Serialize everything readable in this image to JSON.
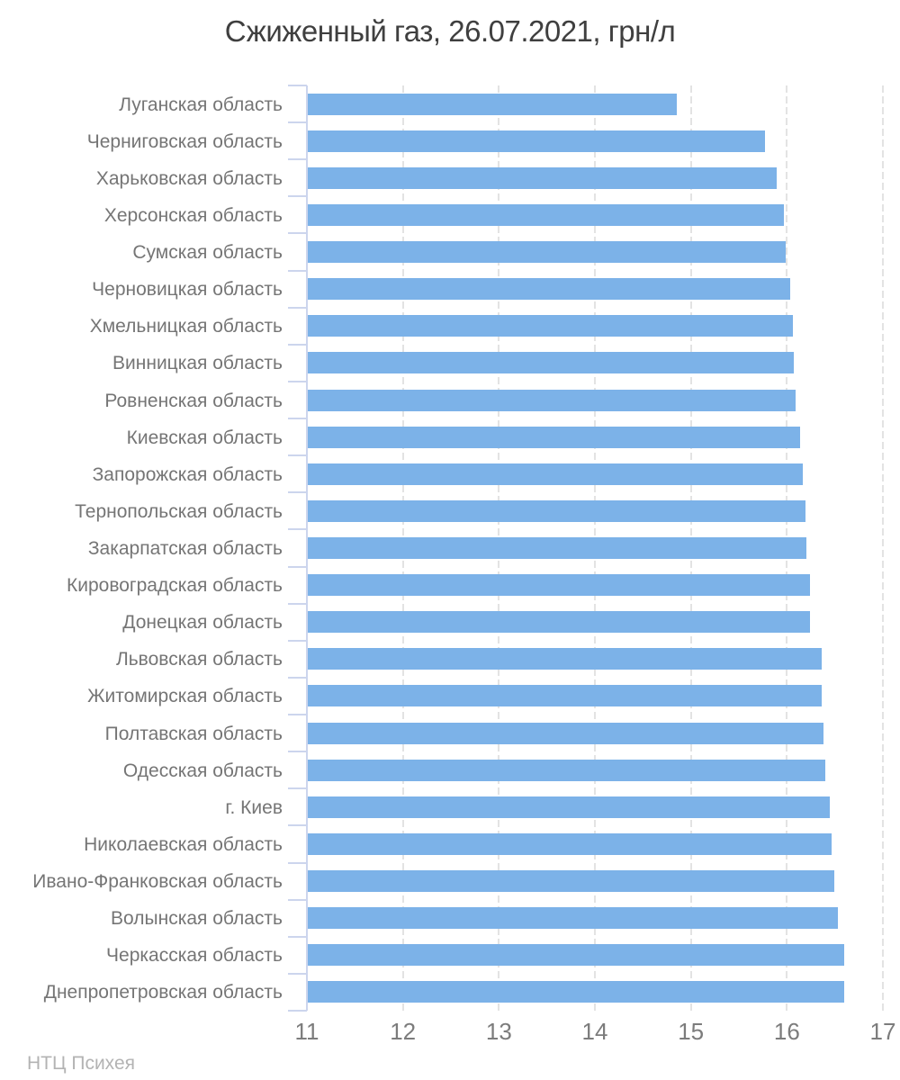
{
  "chart_data": {
    "type": "bar",
    "orientation": "horizontal",
    "title": "Сжиженный газ, 26.07.2021, грн/л",
    "xlabel": "",
    "ylabel": "",
    "categories": [
      "Луганская область",
      "Черниговская область",
      "Харьковская область",
      "Херсонская область",
      "Сумская область",
      "Черновицкая область",
      "Хмельницкая область",
      "Винницкая область",
      "Ровненская область",
      "Киевская область",
      "Запорожская область",
      "Тернопольская область",
      "Закарпатская область",
      "Кировоградская область",
      "Донецкая область",
      "Львовская область",
      "Житомирская область",
      "Полтавская область",
      "Одесская область",
      "г. Киев",
      "Николаевская область",
      "Ивано-Франковская область",
      "Волынская область",
      "Черкасская область",
      "Днепропетровская область"
    ],
    "values": [
      14.85,
      15.77,
      15.89,
      15.97,
      15.99,
      16.03,
      16.06,
      16.07,
      16.09,
      16.14,
      16.17,
      16.19,
      16.2,
      16.24,
      16.24,
      16.36,
      16.36,
      16.38,
      16.4,
      16.45,
      16.47,
      16.49,
      16.53,
      16.6,
      16.6
    ],
    "xlim": [
      11,
      17
    ],
    "xticks": [
      11,
      12,
      13,
      14,
      15,
      16,
      17
    ],
    "grid": "vertical-dashed",
    "legend": "none"
  },
  "colors": {
    "bar": "#7cb2e8",
    "axis": "#ccd5ed",
    "grid": "#e3e3e3",
    "title": "#3f3f3f",
    "category_label": "#757575",
    "tick_label": "#7c7c7c",
    "watermark": "#b3b3b3"
  },
  "footer": {
    "watermark": "НТЦ Психея"
  }
}
